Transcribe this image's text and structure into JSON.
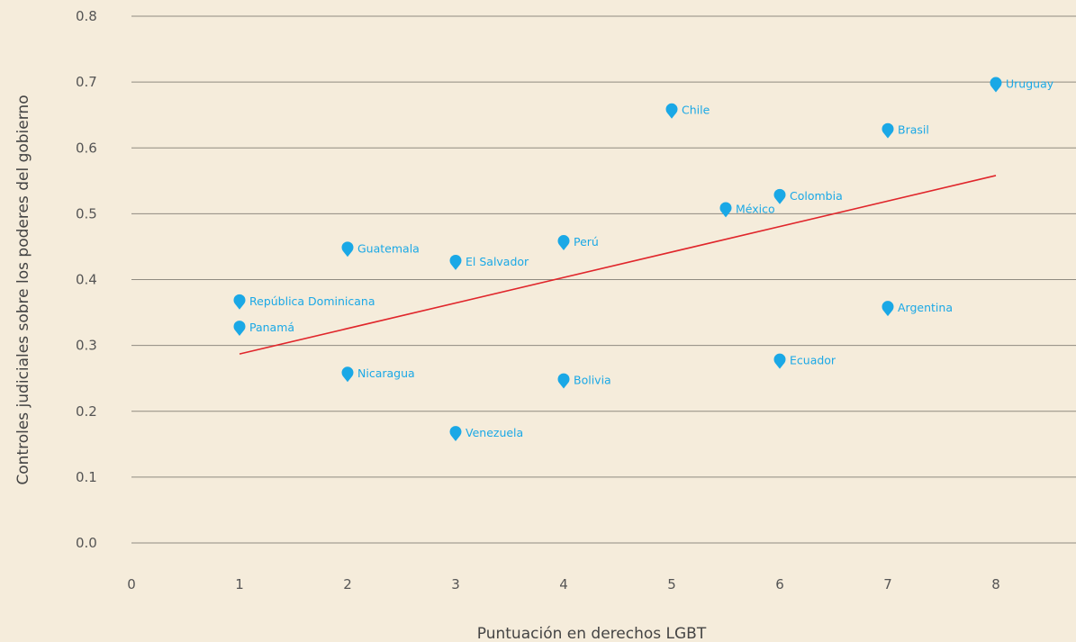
{
  "chart_data": {
    "type": "scatter",
    "xlabel": "Puntuación en derechos LGBT",
    "ylabel": "Controles judiciales sobre los poderes del gobierno",
    "xlim": [
      0,
      9
    ],
    "ylim": [
      0,
      0.8
    ],
    "x_ticks": [
      "0",
      "1",
      "2",
      "3",
      "4",
      "5",
      "6",
      "7",
      "8"
    ],
    "y_ticks": [
      "0.0",
      "0.1",
      "0.2",
      "0.3",
      "0.4",
      "0.5",
      "0.6",
      "0.7",
      "0.8"
    ],
    "grid": true,
    "points": [
      {
        "label": "Uruguay",
        "x": 8,
        "y": 0.69
      },
      {
        "label": "Chile",
        "x": 5,
        "y": 0.65
      },
      {
        "label": "Brasil",
        "x": 7,
        "y": 0.62
      },
      {
        "label": "Colombia",
        "x": 6,
        "y": 0.52
      },
      {
        "label": "México",
        "x": 5.5,
        "y": 0.5
      },
      {
        "label": "Perú",
        "x": 4,
        "y": 0.45
      },
      {
        "label": "Guatemala",
        "x": 2,
        "y": 0.44
      },
      {
        "label": "El Salvador",
        "x": 3,
        "y": 0.42
      },
      {
        "label": "República Dominicana",
        "x": 1,
        "y": 0.36
      },
      {
        "label": "Argentina",
        "x": 7,
        "y": 0.35
      },
      {
        "label": "Panamá",
        "x": 1,
        "y": 0.32
      },
      {
        "label": "Ecuador",
        "x": 6,
        "y": 0.27
      },
      {
        "label": "Nicaragua",
        "x": 2,
        "y": 0.25
      },
      {
        "label": "Bolivia",
        "x": 4,
        "y": 0.24
      },
      {
        "label": "Venezuela",
        "x": 3,
        "y": 0.16
      }
    ],
    "trendline": {
      "x": [
        1,
        8
      ],
      "y": [
        0.287,
        0.558
      ]
    },
    "colors": {
      "background": "#f5ecdb",
      "point": "#1aa8e6",
      "label": "#1aa8e6",
      "trendline": "#e0262b",
      "grid": "#8f8a80"
    }
  }
}
